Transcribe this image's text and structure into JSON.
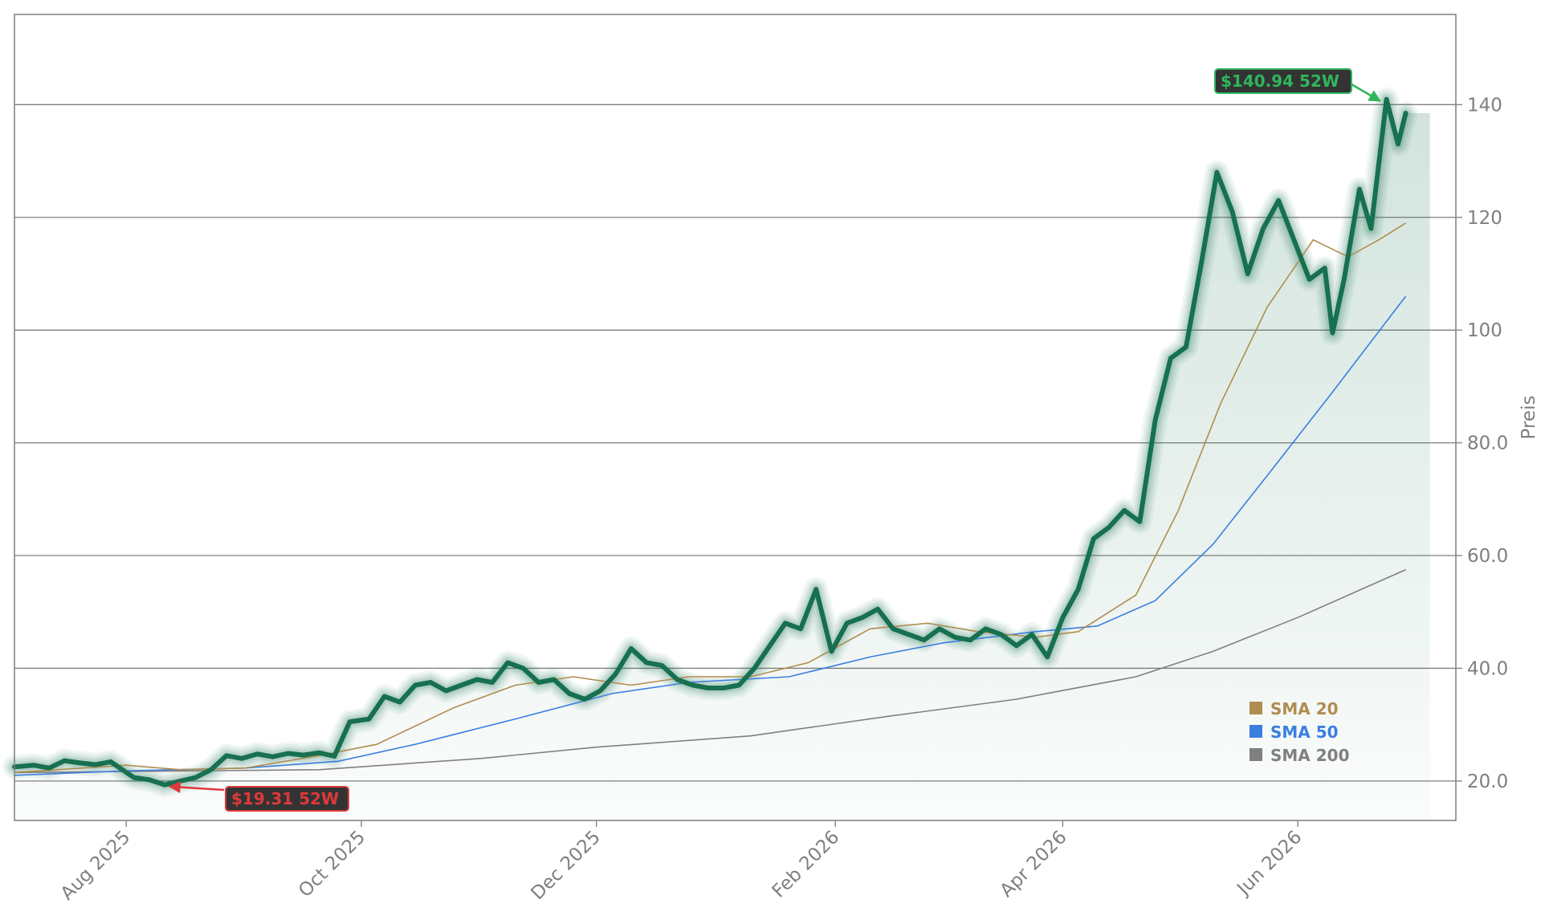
{
  "chart_data": {
    "type": "line",
    "title": "",
    "xlabel": "",
    "ylabel": "Preis",
    "ylim": [
      13,
      156
    ],
    "xlim": [
      "2025-07-03",
      "2026-07-12"
    ],
    "yticks": [
      "20.0",
      "40.0",
      "60.0",
      "80.0",
      "100",
      "120",
      "140"
    ],
    "ytick_values": [
      20,
      40,
      60,
      80,
      100,
      120,
      140
    ],
    "xticks": [
      {
        "label": "Aug 2025",
        "date": "2025-08-01"
      },
      {
        "label": "Oct 2025",
        "date": "2025-10-01"
      },
      {
        "label": "Dec 2025",
        "date": "2025-12-01"
      },
      {
        "label": "Feb 2026",
        "date": "2026-02-01"
      },
      {
        "label": "Apr 2026",
        "date": "2026-04-01"
      },
      {
        "label": "Jun 2026",
        "date": "2026-06-01"
      }
    ],
    "grid": "horizontal",
    "legend_position": "bottom-right",
    "colors": {
      "price": "#17704f",
      "sma20": "#b08d4f",
      "sma50": "#3a7fe0",
      "sma200": "#808080",
      "high": "#2fb55c",
      "low": "#dd3a3a",
      "axis_text": "#7f7f7f"
    },
    "series": [
      {
        "name": "",
        "key": "price",
        "points": [
          [
            "2025-07-03",
            22.5
          ],
          [
            "2025-07-08",
            22.8
          ],
          [
            "2025-07-12",
            22.3
          ],
          [
            "2025-07-16",
            23.6
          ],
          [
            "2025-07-20",
            23.2
          ],
          [
            "2025-07-24",
            22.9
          ],
          [
            "2025-07-28",
            23.4
          ],
          [
            "2025-08-03",
            20.6
          ],
          [
            "2025-08-07",
            20.2
          ],
          [
            "2025-08-11",
            19.31
          ],
          [
            "2025-08-15",
            20.0
          ],
          [
            "2025-08-19",
            20.6
          ],
          [
            "2025-08-23",
            22.0
          ],
          [
            "2025-08-27",
            24.5
          ],
          [
            "2025-08-31",
            24.0
          ],
          [
            "2025-09-04",
            24.8
          ],
          [
            "2025-09-08",
            24.3
          ],
          [
            "2025-09-12",
            24.9
          ],
          [
            "2025-09-16",
            24.6
          ],
          [
            "2025-09-20",
            25.0
          ],
          [
            "2025-09-24",
            24.4
          ],
          [
            "2025-09-28",
            30.5
          ],
          [
            "2025-10-03",
            31.0
          ],
          [
            "2025-10-07",
            35.0
          ],
          [
            "2025-10-11",
            34.0
          ],
          [
            "2025-10-15",
            37.0
          ],
          [
            "2025-10-19",
            37.5
          ],
          [
            "2025-10-23",
            36.0
          ],
          [
            "2025-10-27",
            37.0
          ],
          [
            "2025-10-31",
            38.0
          ],
          [
            "2025-11-04",
            37.5
          ],
          [
            "2025-11-08",
            41.0
          ],
          [
            "2025-11-12",
            40.0
          ],
          [
            "2025-11-16",
            37.5
          ],
          [
            "2025-11-20",
            38.0
          ],
          [
            "2025-11-24",
            35.5
          ],
          [
            "2025-11-28",
            34.5
          ],
          [
            "2025-12-02",
            36.0
          ],
          [
            "2025-12-06",
            39.0
          ],
          [
            "2025-12-10",
            43.5
          ],
          [
            "2025-12-14",
            41.0
          ],
          [
            "2025-12-18",
            40.5
          ],
          [
            "2025-12-22",
            38.0
          ],
          [
            "2025-12-26",
            37.0
          ],
          [
            "2025-12-30",
            36.5
          ],
          [
            "2026-01-03",
            36.5
          ],
          [
            "2026-01-07",
            37.0
          ],
          [
            "2026-01-11",
            40.0
          ],
          [
            "2026-01-15",
            44.0
          ],
          [
            "2026-01-19",
            48.0
          ],
          [
            "2026-01-23",
            47.0
          ],
          [
            "2026-01-27",
            54.0
          ],
          [
            "2026-01-31",
            43.0
          ],
          [
            "2026-02-04",
            48.0
          ],
          [
            "2026-02-08",
            49.0
          ],
          [
            "2026-02-12",
            50.5
          ],
          [
            "2026-02-16",
            47.0
          ],
          [
            "2026-02-20",
            46.0
          ],
          [
            "2026-02-24",
            45.0
          ],
          [
            "2026-02-28",
            47.0
          ],
          [
            "2026-03-04",
            45.5
          ],
          [
            "2026-03-08",
            45.0
          ],
          [
            "2026-03-12",
            47.0
          ],
          [
            "2026-03-16",
            46.0
          ],
          [
            "2026-03-20",
            44.0
          ],
          [
            "2026-03-24",
            46.0
          ],
          [
            "2026-03-28",
            42.0
          ],
          [
            "2026-04-01",
            49.0
          ],
          [
            "2026-04-05",
            54.0
          ],
          [
            "2026-04-09",
            63.0
          ],
          [
            "2026-04-13",
            65.0
          ],
          [
            "2026-04-17",
            68.0
          ],
          [
            "2026-04-21",
            66.0
          ],
          [
            "2026-04-25",
            84.0
          ],
          [
            "2026-04-29",
            95.0
          ],
          [
            "2026-05-03",
            97.0
          ],
          [
            "2026-05-07",
            112.0
          ],
          [
            "2026-05-11",
            128.0
          ],
          [
            "2026-05-15",
            121.0
          ],
          [
            "2026-05-19",
            110.0
          ],
          [
            "2026-05-23",
            118.0
          ],
          [
            "2026-05-27",
            123.0
          ],
          [
            "2026-05-31",
            116.0
          ],
          [
            "2026-06-04",
            109.0
          ],
          [
            "2026-06-08",
            111.0
          ],
          [
            "2026-06-10",
            99.5
          ],
          [
            "2026-06-13",
            109.0
          ],
          [
            "2026-06-17",
            125.0
          ],
          [
            "2026-06-20",
            118.0
          ],
          [
            "2026-06-24",
            140.94
          ],
          [
            "2026-06-27",
            133.0
          ],
          [
            "2026-06-29",
            138.5
          ]
        ]
      },
      {
        "name": "SMA 20",
        "key": "sma20",
        "points": [
          [
            "2025-07-03",
            21.5
          ],
          [
            "2025-08-01",
            22.8
          ],
          [
            "2025-08-15",
            22.0
          ],
          [
            "2025-09-01",
            22.3
          ],
          [
            "2025-09-20",
            24.5
          ],
          [
            "2025-10-05",
            26.5
          ],
          [
            "2025-10-25",
            33.0
          ],
          [
            "2025-11-10",
            37.0
          ],
          [
            "2025-11-25",
            38.5
          ],
          [
            "2025-12-10",
            37.0
          ],
          [
            "2025-12-25",
            38.5
          ],
          [
            "2026-01-10",
            38.5
          ],
          [
            "2026-01-25",
            41.0
          ],
          [
            "2026-02-10",
            47.0
          ],
          [
            "2026-02-25",
            48.0
          ],
          [
            "2026-03-10",
            46.5
          ],
          [
            "2026-03-25",
            45.5
          ],
          [
            "2026-04-05",
            46.5
          ],
          [
            "2026-04-20",
            53.0
          ],
          [
            "2026-05-01",
            68.0
          ],
          [
            "2026-05-12",
            87.0
          ],
          [
            "2026-05-24",
            104.0
          ],
          [
            "2026-06-05",
            116.0
          ],
          [
            "2026-06-14",
            113.0
          ],
          [
            "2026-06-22",
            116.0
          ],
          [
            "2026-06-29",
            119.0
          ]
        ]
      },
      {
        "name": "SMA 50",
        "key": "sma50",
        "points": [
          [
            "2025-07-03",
            21.0
          ],
          [
            "2025-08-01",
            21.8
          ],
          [
            "2025-09-01",
            22.3
          ],
          [
            "2025-09-25",
            23.5
          ],
          [
            "2025-10-15",
            26.5
          ],
          [
            "2025-11-10",
            31.0
          ],
          [
            "2025-12-05",
            35.5
          ],
          [
            "2025-12-25",
            37.5
          ],
          [
            "2026-01-20",
            38.5
          ],
          [
            "2026-02-10",
            42.0
          ],
          [
            "2026-03-01",
            44.5
          ],
          [
            "2026-03-25",
            46.5
          ],
          [
            "2026-04-10",
            47.5
          ],
          [
            "2026-04-25",
            52.0
          ],
          [
            "2026-05-10",
            62.0
          ],
          [
            "2026-05-25",
            75.0
          ],
          [
            "2026-06-10",
            89.0
          ],
          [
            "2026-06-29",
            106.0
          ]
        ]
      },
      {
        "name": "SMA 200",
        "key": "sma200",
        "points": [
          [
            "2025-07-03",
            21.5
          ],
          [
            "2025-09-20",
            22.0
          ],
          [
            "2025-11-01",
            24.0
          ],
          [
            "2025-12-01",
            26.0
          ],
          [
            "2026-01-10",
            28.0
          ],
          [
            "2026-02-15",
            31.5
          ],
          [
            "2026-03-20",
            34.5
          ],
          [
            "2026-04-20",
            38.5
          ],
          [
            "2026-05-10",
            43.0
          ],
          [
            "2026-06-01",
            49.0
          ],
          [
            "2026-06-29",
            57.5
          ]
        ]
      }
    ],
    "legend": [
      {
        "label": "SMA 20",
        "key": "sma20"
      },
      {
        "label": "SMA 50",
        "key": "sma50"
      },
      {
        "label": "SMA 200",
        "key": "sma200"
      }
    ],
    "annotations": {
      "high": {
        "label": "$140.94 52W",
        "date": "2026-06-24",
        "value": 140.94
      },
      "low": {
        "label": "$19.31 52W",
        "date": "2025-08-11",
        "value": 19.31
      }
    }
  }
}
